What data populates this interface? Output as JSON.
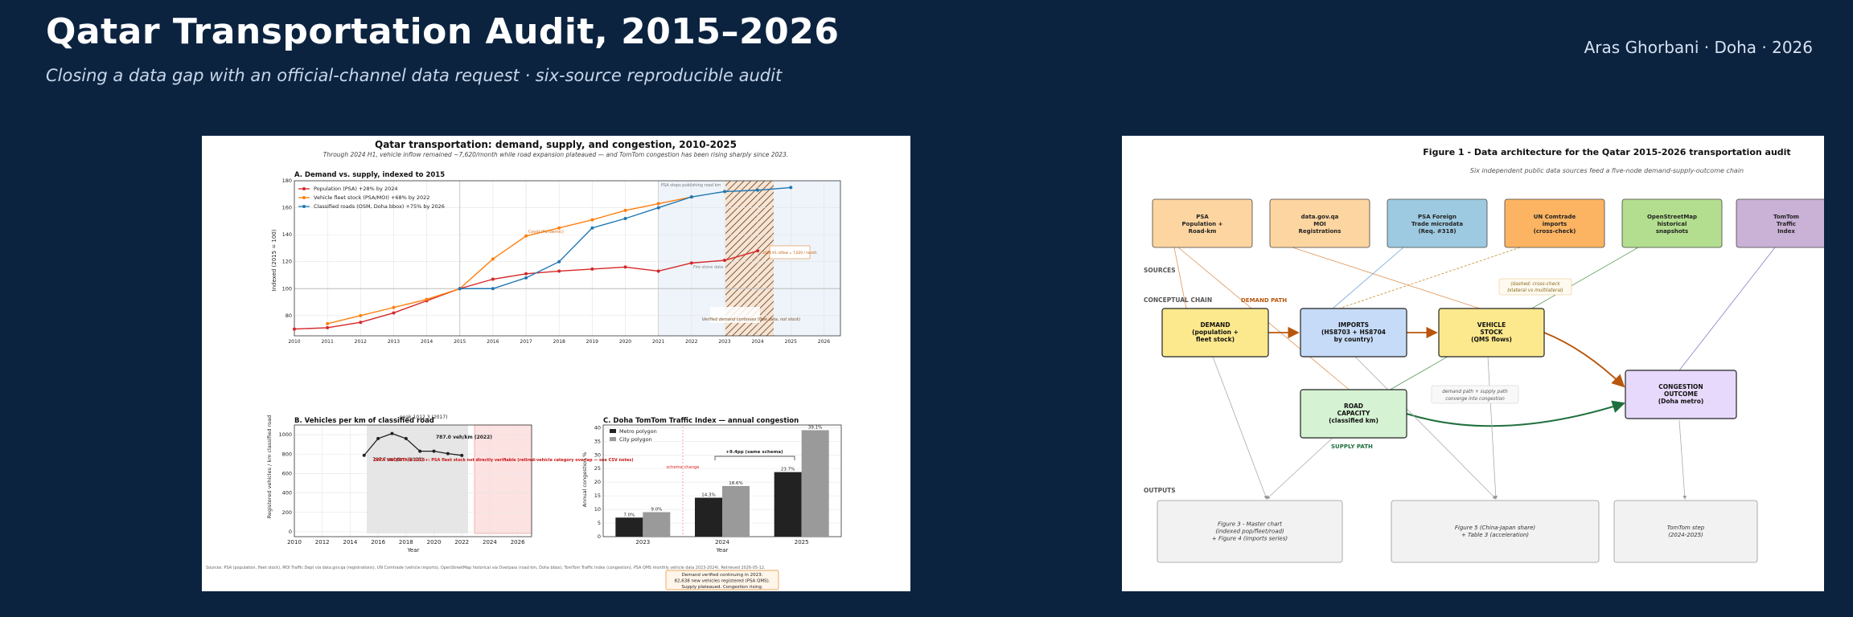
{
  "header": {
    "title": "Qatar Transportation Audit, 2015–2026",
    "subtitle": "Closing a data gap with an official-channel data request  ·  six-source reproducible audit",
    "author": "Aras Ghorbani  ·  Doha  ·  2026"
  },
  "left_figure": {
    "title": "Qatar transportation: demand, supply, and congestion, 2010-2025",
    "subtitle": "Through 2024 H1, vehicle inflow remained ~7,620/month while road expansion plateaued — and TomTom congestion has been rising sharply since 2023.",
    "sources_note": "Sources: PSA (population, fleet stock), MOI Traffic Dept via data.gov.qa (registrations), UN Comtrade (vehicle imports), OpenStreetMap historical via Overpass (road km, Doha bbox), TomTom Traffic Index (congestion), PSA QMS monthly vehicle data 2023-2024). Retrieved 2026-05-12.",
    "footer_box": [
      "Demand verified continuing in 2023:",
      "82,638 new vehicles registered (PSA QMS).",
      "Supply plateaued. Congestion rising."
    ]
  },
  "chart_data": [
    {
      "type": "line",
      "title": "A. Demand vs. supply, indexed to 2015",
      "ylabel": "Indexed (2015 = 100)",
      "ylim": [
        65,
        180
      ],
      "xlim": [
        2010,
        2026.5
      ],
      "xticks": [
        2010,
        2011,
        2012,
        2013,
        2014,
        2015,
        2016,
        2017,
        2018,
        2019,
        2020,
        2021,
        2022,
        2023,
        2024,
        2025,
        2026
      ],
      "yticks": [
        80,
        100,
        120,
        140,
        160,
        180
      ],
      "grid": true,
      "legend": "top-left",
      "series": [
        {
          "name": "Population (PSA)  +28% by 2024",
          "color": "#d62728",
          "x": [
            2010,
            2011,
            2012,
            2013,
            2014,
            2015,
            2016,
            2017,
            2018,
            2019,
            2020,
            2021,
            2022,
            2023,
            2024
          ],
          "values": [
            70,
            71,
            75,
            82,
            91,
            100,
            107,
            111,
            113,
            114.5,
            116,
            113,
            119,
            121,
            128
          ]
        },
        {
          "name": "Vehicle fleet stock (PSA/MOI)  +68% by 2022",
          "color": "#ff7f0e",
          "x": [
            2011,
            2012,
            2013,
            2014,
            2015,
            2016,
            2017,
            2018,
            2019,
            2020,
            2021,
            2022
          ],
          "values": [
            74,
            80,
            86,
            92,
            100,
            122,
            139,
            145,
            151,
            158,
            163,
            168
          ]
        },
        {
          "name": "Classified roads (OSM, Doha bbox)  +75% by 2026",
          "color": "#1f77b4",
          "x": [
            2015,
            2016,
            2017,
            2018,
            2019,
            2020,
            2021,
            2022,
            2023,
            2024,
            2025
          ],
          "values": [
            100,
            100,
            108,
            120,
            145,
            152,
            160,
            168,
            172,
            173,
            175
          ]
        }
      ],
      "annotations": [
        "PSA stops publishing road km",
        "Covid (Pandemic)",
        "Verified demand continues (flow data, not stock)",
        "2024 H1 inflow = 7,620 / month",
        "Fire stone data"
      ]
    },
    {
      "type": "line",
      "title": "B. Vehicles per km of classified road",
      "ylabel": "Registered vehicles / km classified road",
      "xlabel": "Year",
      "ylim": [
        -50,
        1100
      ],
      "xlim": [
        2010,
        2027
      ],
      "xticks": [
        2010,
        2012,
        2014,
        2016,
        2018,
        2020,
        2022,
        2024,
        2026
      ],
      "yticks": [
        0,
        200,
        400,
        600,
        800,
        1000
      ],
      "series": [
        {
          "name": "",
          "color": "#222222",
          "x": [
            2015,
            2016,
            2017,
            2018,
            2019,
            2020,
            2021,
            2022
          ],
          "values": [
            787.7,
            960,
            1012.3,
            960,
            830,
            830,
            805,
            787
          ]
        }
      ],
      "annotations": [
        "787.7 veh/km (2015)",
        "peak 1012.3 (2017)",
        "787.0 veh/km (2022)",
        "DATA UNCERTAIN 2023+: PSA fleet stock not directly verifiable (retired-vehicle category overlap — see CSV notes)"
      ]
    },
    {
      "type": "bar",
      "title": "C. Doha TomTom Traffic Index — annual congestion",
      "ylabel": "Annual congestion %",
      "xlabel": "Year",
      "ylim": [
        0,
        41
      ],
      "yticks": [
        0,
        5,
        10,
        15,
        20,
        25,
        30,
        35,
        40
      ],
      "categories": [
        "2023",
        "2024",
        "2025"
      ],
      "series": [
        {
          "name": "Metro polygon",
          "color": "#222222",
          "values": [
            7.0,
            14.3,
            23.7
          ]
        },
        {
          "name": "City polygon",
          "color": "#9a9a9a",
          "values": [
            9.0,
            18.6,
            39.1
          ]
        }
      ],
      "annotations": [
        "schema change",
        "+9.4pp (same schema)"
      ]
    }
  ],
  "right_figure": {
    "title": "Figure 1 - Data architecture for the Qatar 2015-2026 transportation audit",
    "subtitle": "Six independent public data sources feed a five-node demand-supply-outcome chain",
    "section_labels": {
      "sources": "SOURCES",
      "chain": "CONCEPTUAL CHAIN",
      "outputs": "OUTPUTS"
    },
    "sources": [
      {
        "lines": [
          "PSA",
          "Population +",
          "Road-km"
        ],
        "color": "#fdd5a0"
      },
      {
        "lines": [
          "data.gov.qa",
          "MOI",
          "Registrations"
        ],
        "color": "#fdd5a0"
      },
      {
        "lines": [
          "PSA Foreign",
          "Trade microdata",
          "(Req. #318)"
        ],
        "color": "#9ecae1"
      },
      {
        "lines": [
          "UN Comtrade",
          "imports",
          "(cross-check)"
        ],
        "color": "#fdb462"
      },
      {
        "lines": [
          "OpenStreetMap",
          "historical",
          "snapshots"
        ],
        "color": "#b3de8f"
      },
      {
        "lines": [
          "TomTom",
          "Traffic",
          "Index"
        ],
        "color": "#cab2d6"
      }
    ],
    "nodes": {
      "demand": {
        "lines": [
          "DEMAND",
          "(population +",
          "fleet stock)"
        ],
        "color": "#fde98d"
      },
      "imports": {
        "lines": [
          "IMPORTS",
          "(HS8703 + HS8704",
          "by country)"
        ],
        "color": "#c6dbf7"
      },
      "vehicle": {
        "lines": [
          "VEHICLE",
          "STOCK",
          "(QMS flows)"
        ],
        "color": "#fde98d"
      },
      "road": {
        "lines": [
          "ROAD",
          "CAPACITY",
          "(classified km)"
        ],
        "color": "#d5f2d2"
      },
      "congestion": {
        "lines": [
          "CONGESTION",
          "OUTCOME",
          "(Doha metro)"
        ],
        "color": "#e7d9fb"
      }
    },
    "labels": {
      "demand_path": "DEMAND PATH",
      "supply_path": "SUPPLY PATH",
      "crosscheck": [
        "(dashed: cross-check",
        "bilateral vs multilateral)"
      ],
      "converge": [
        "demand path + supply path",
        "converge into congestion"
      ]
    },
    "outputs": [
      {
        "lines": [
          "Figure 3 - Master chart",
          "(indexed pop/fleet/road)",
          "+ Figure 4 (imports series)"
        ]
      },
      {
        "lines": [
          "Figure 5 (China-Japan share)",
          "+ Table 3 (acceleration)"
        ]
      },
      {
        "lines": [
          "TomTom step",
          "(2024-2025)"
        ]
      }
    ]
  }
}
